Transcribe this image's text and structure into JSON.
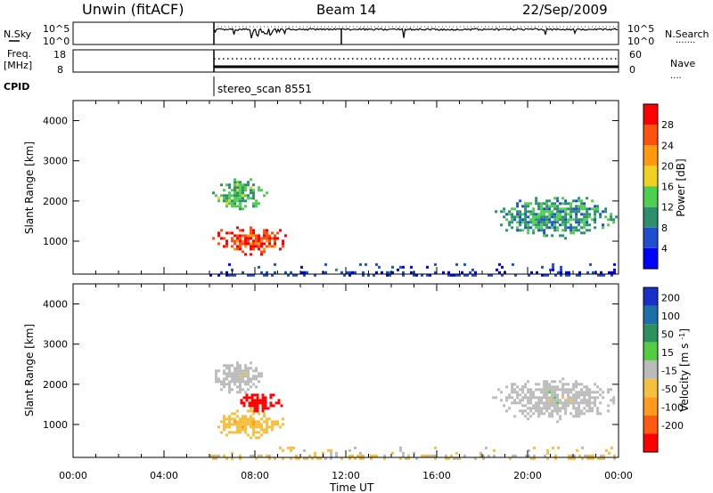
{
  "header": {
    "station": "Unwin (fitACF)",
    "beam": "Beam 14",
    "date": "22/Sep/2009"
  },
  "nsky_panel": {
    "left_label": "N.Sky",
    "left_ticks": [
      "10^5",
      "10^0"
    ],
    "right_ticks": [
      "10^5",
      "10^0"
    ],
    "right_label": "N.Search",
    "right_marker": "......."
  },
  "freq_panel": {
    "left_label_1": "Freq.",
    "left_label_2": "[MHz]",
    "left_ticks": [
      "18",
      "8"
    ],
    "right_ticks": [
      "60",
      "0"
    ],
    "right_label": "Nave",
    "right_marker": "...."
  },
  "cpid": {
    "label": "CPID",
    "program": "stereo_scan 8551"
  },
  "time_axis": {
    "ticks": [
      "00:00",
      "04:00",
      "08:00",
      "12:00",
      "16:00",
      "20:00",
      "00:00"
    ],
    "label": "Time UT"
  },
  "colors": {
    "power": [
      "#0000ff",
      "#1f4fcf",
      "#2e8f6f",
      "#4fcf4f",
      "#f0d020",
      "#ff9a10",
      "#ff5010",
      "#ff0000"
    ],
    "velocity": [
      "#1a30c8",
      "#1e6fa8",
      "#2e8f5f",
      "#55cc44",
      "#bbbbbb",
      "#f5c040",
      "#ff9a20",
      "#ff5a10",
      "#ff0000"
    ]
  },
  "chart_data": [
    {
      "type": "heatmap",
      "title": "",
      "xlabel": "Time UT",
      "ylabel": "Slant Range [km]",
      "xlim": [
        0,
        24
      ],
      "ylim": [
        180,
        4500
      ],
      "yticks": [
        "1000",
        "2000",
        "3000",
        "4000"
      ],
      "colorbar": {
        "label": "Power [dB]",
        "ticks": [
          "4",
          "8",
          "12",
          "16",
          "20",
          "24",
          "28"
        ],
        "range": [
          0,
          30
        ]
      },
      "regions": [
        {
          "t0": 6.0,
          "t1": 9.5,
          "r0": 600,
          "r1": 1500,
          "value": 26
        },
        {
          "t0": 6.0,
          "t1": 8.5,
          "r0": 1700,
          "r1": 2700,
          "value": 12
        },
        {
          "t0": 18.2,
          "t1": 24.0,
          "r0": 1000,
          "r1": 2300,
          "value": 10
        },
        {
          "t0": 6.0,
          "t1": 24.0,
          "r0": 180,
          "r1": 450,
          "value": 4
        }
      ]
    },
    {
      "type": "heatmap",
      "title": "",
      "xlabel": "Time UT",
      "ylabel": "Slant Range [km]",
      "xlim": [
        0,
        24
      ],
      "ylim": [
        180,
        4500
      ],
      "yticks": [
        "1000",
        "2000",
        "3000",
        "4000"
      ],
      "colorbar": {
        "label": "Velocity [m s^-1]",
        "ticks": [
          "200",
          "100",
          "50",
          "15",
          "-15",
          "-50",
          "-100",
          "-200"
        ],
        "range": [
          -250,
          250
        ]
      },
      "regions": [
        {
          "t0": 6.0,
          "t1": 9.3,
          "r0": 600,
          "r1": 1500,
          "value": -60
        },
        {
          "t0": 7.0,
          "t1": 9.3,
          "r0": 1300,
          "r1": 1900,
          "value": -220
        },
        {
          "t0": 6.0,
          "t1": 8.5,
          "r0": 1700,
          "r1": 2700,
          "value": 0
        },
        {
          "t0": 18.2,
          "t1": 24.0,
          "r0": 1000,
          "r1": 2300,
          "value": 0
        },
        {
          "t0": 6.0,
          "t1": 24.0,
          "r0": 180,
          "r1": 450,
          "value": -30
        }
      ]
    }
  ]
}
